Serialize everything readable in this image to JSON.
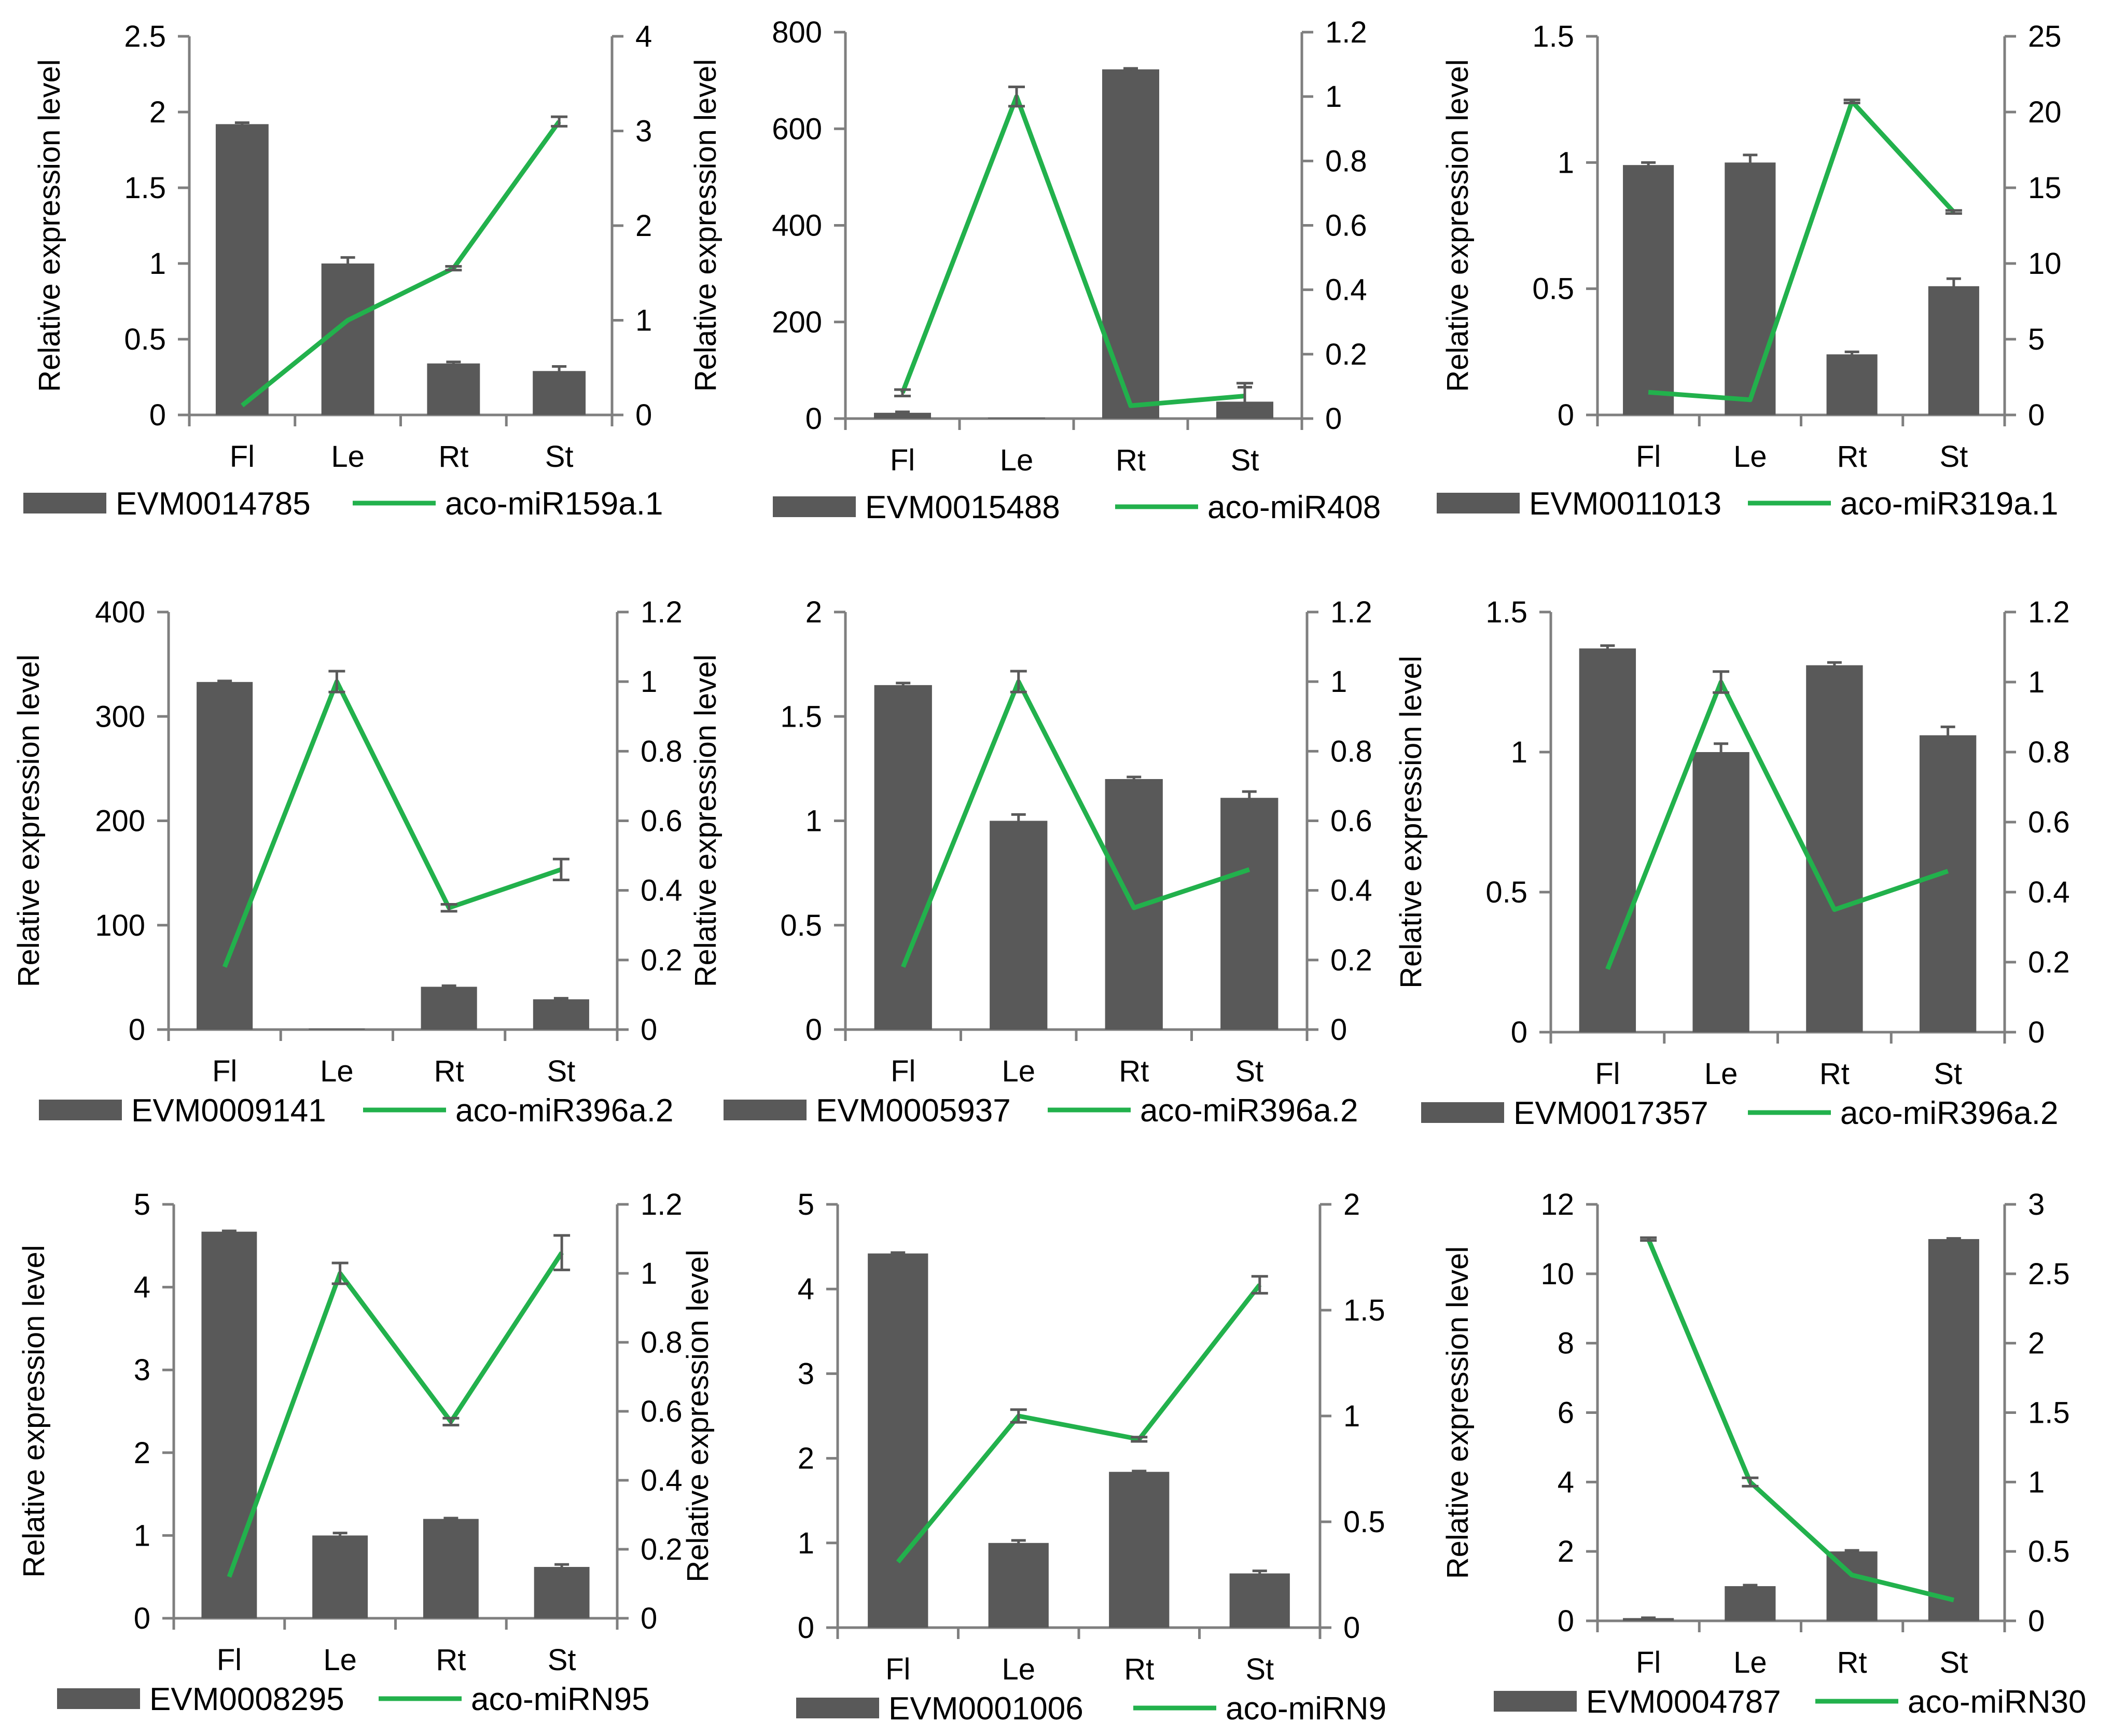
{
  "colors": {
    "bar": "#595959",
    "line": "#22b14c",
    "axis": "#7f7f7f"
  },
  "chart_data": [
    {
      "type": "bar+line",
      "categories": [
        "Fl",
        "Le",
        "Rt",
        "St"
      ],
      "ylabel": "Relative expression level",
      "bar_series": {
        "name": "EVM0014785",
        "values": [
          1.92,
          1.0,
          0.34,
          0.29
        ],
        "errors": [
          0.01,
          0.04,
          0.01,
          0.03
        ]
      },
      "line_series": {
        "name": "aco-miR159a.1",
        "values": [
          0.1,
          1.0,
          1.55,
          3.1
        ],
        "errors": [
          0,
          0,
          0.02,
          0.05
        ]
      },
      "y_left": {
        "min": 0,
        "max": 2.5,
        "ticks": [
          "0",
          "0.5",
          "1",
          "1.5",
          "2",
          "2.5"
        ]
      },
      "y_right": {
        "min": 0,
        "max": 4,
        "ticks": [
          "0",
          "1",
          "2",
          "3",
          "4"
        ]
      }
    },
    {
      "type": "bar+line",
      "categories": [
        "Fl",
        "Le",
        "Rt",
        "St"
      ],
      "ylabel": "Relative expression level",
      "bar_series": {
        "name": "EVM0015488",
        "values": [
          12,
          2,
          723,
          35
        ],
        "errors": [
          2,
          0,
          2,
          30
        ]
      },
      "line_series": {
        "name": "aco-miR408",
        "values": [
          0.08,
          1.0,
          0.04,
          0.07
        ],
        "errors": [
          0.01,
          0.03,
          0,
          0.04
        ]
      },
      "y_left": {
        "min": 0,
        "max": 800,
        "ticks": [
          "0",
          "200",
          "400",
          "600",
          "800"
        ]
      },
      "y_right": {
        "min": 0,
        "max": 1.2,
        "ticks": [
          "0",
          "0.2",
          "0.4",
          "0.6",
          "0.8",
          "1",
          "1.2"
        ]
      }
    },
    {
      "type": "bar+line",
      "categories": [
        "Fl",
        "Le",
        "Rt",
        "St"
      ],
      "ylabel": "Relative expression level",
      "bar_series": {
        "name": "EVM0011013",
        "values": [
          0.99,
          1.0,
          0.24,
          0.51
        ],
        "errors": [
          0.01,
          0.03,
          0.01,
          0.03
        ]
      },
      "line_series": {
        "name": "aco-miR319a.1",
        "values": [
          1.5,
          1.0,
          20.7,
          13.4
        ],
        "errors": [
          0,
          0,
          0.1,
          0.1
        ]
      },
      "y_left": {
        "min": 0,
        "max": 1.5,
        "ticks": [
          "0",
          "0.5",
          "1",
          "1.5"
        ]
      },
      "y_right": {
        "min": 0,
        "max": 25,
        "ticks": [
          "0",
          "5",
          "10",
          "15",
          "20",
          "25"
        ]
      }
    },
    {
      "type": "bar+line",
      "categories": [
        "Fl",
        "Le",
        "Rt",
        "St"
      ],
      "ylabel": "Relative expression level",
      "bar_series": {
        "name": "EVM0009141",
        "values": [
          333,
          1,
          41,
          29
        ],
        "errors": [
          1,
          0,
          1,
          1
        ]
      },
      "line_series": {
        "name": "aco-miR396a.2",
        "values": [
          0.18,
          1.0,
          0.35,
          0.46
        ],
        "errors": [
          0,
          0.03,
          0.01,
          0.03
        ]
      },
      "y_left": {
        "min": 0,
        "max": 400,
        "ticks": [
          "0",
          "100",
          "200",
          "300",
          "400"
        ]
      },
      "y_right": {
        "min": 0,
        "max": 1.2,
        "ticks": [
          "0",
          "0.2",
          "0.4",
          "0.6",
          "0.8",
          "1",
          "1.2"
        ]
      }
    },
    {
      "type": "bar+line",
      "categories": [
        "Fl",
        "Le",
        "Rt",
        "St"
      ],
      "ylabel": "Relative expression level",
      "bar_series": {
        "name": "EVM0005937",
        "values": [
          1.65,
          1.0,
          1.2,
          1.11
        ],
        "errors": [
          0.01,
          0.03,
          0.01,
          0.03
        ]
      },
      "line_series": {
        "name": "aco-miR396a.2",
        "values": [
          0.18,
          1.0,
          0.35,
          0.46
        ],
        "errors": [
          0,
          0.03,
          0,
          0
        ]
      },
      "y_left": {
        "min": 0,
        "max": 2,
        "ticks": [
          "0",
          "0.5",
          "1",
          "1.5",
          "2"
        ]
      },
      "y_right": {
        "min": 0,
        "max": 1.2,
        "ticks": [
          "0",
          "0.2",
          "0.4",
          "0.6",
          "0.8",
          "1",
          "1.2"
        ]
      }
    },
    {
      "type": "bar+line",
      "categories": [
        "Fl",
        "Le",
        "Rt",
        "St"
      ],
      "ylabel": "Relative expression level",
      "bar_series": {
        "name": "EVM0017357",
        "values": [
          1.37,
          1.0,
          1.31,
          1.06
        ],
        "errors": [
          0.01,
          0.03,
          0.01,
          0.03
        ]
      },
      "line_series": {
        "name": "aco-miR396a.2",
        "values": [
          0.18,
          1.0,
          0.35,
          0.46
        ],
        "errors": [
          0,
          0.03,
          0,
          0
        ]
      },
      "y_left": {
        "min": 0,
        "max": 1.5,
        "ticks": [
          "0",
          "0.5",
          "1",
          "1.5"
        ]
      },
      "y_right": {
        "min": 0,
        "max": 1.2,
        "ticks": [
          "0",
          "0.2",
          "0.4",
          "0.6",
          "0.8",
          "1",
          "1.2"
        ]
      }
    },
    {
      "type": "bar+line",
      "categories": [
        "Fl",
        "Le",
        "Rt",
        "St"
      ],
      "ylabel": "Relative expression level",
      "bar_series": {
        "name": "EVM0008295",
        "values": [
          4.67,
          1.0,
          1.2,
          0.62
        ],
        "errors": [
          0.01,
          0.03,
          0.01,
          0.03
        ]
      },
      "line_series": {
        "name": "aco-miRN95",
        "values": [
          0.12,
          1.0,
          0.57,
          1.06
        ],
        "errors": [
          0,
          0.03,
          0.01,
          0.05
        ]
      },
      "y_left": {
        "min": 0,
        "max": 5,
        "ticks": [
          "0",
          "1",
          "2",
          "3",
          "4",
          "5"
        ]
      },
      "y_right": {
        "min": 0,
        "max": 1.2,
        "ticks": [
          "0",
          "0.2",
          "0.4",
          "0.6",
          "0.8",
          "1",
          "1.2"
        ]
      }
    },
    {
      "type": "bar+line",
      "categories": [
        "Fl",
        "Le",
        "Rt",
        "St"
      ],
      "ylabel": "Relative expression level",
      "bar_series": {
        "name": "EVM0001006",
        "values": [
          4.42,
          1.0,
          1.84,
          0.64
        ],
        "errors": [
          0.01,
          0.03,
          0.01,
          0.03
        ]
      },
      "line_series": {
        "name": "aco-miRN9",
        "values": [
          0.31,
          1.0,
          0.89,
          1.62
        ],
        "errors": [
          0,
          0.03,
          0.01,
          0.04
        ]
      },
      "y_left": {
        "min": 0,
        "max": 5,
        "ticks": [
          "0",
          "1",
          "2",
          "3",
          "4",
          "5"
        ]
      },
      "y_right": {
        "min": 0,
        "max": 2,
        "ticks": [
          "0",
          "0.5",
          "1",
          "1.5",
          "2"
        ]
      }
    },
    {
      "type": "bar+line",
      "categories": [
        "Fl",
        "Le",
        "Rt",
        "St"
      ],
      "ylabel": "Relative expression level",
      "bar_series": {
        "name": "EVM0004787",
        "values": [
          0.08,
          1.0,
          2.0,
          11.0
        ],
        "errors": [
          0.01,
          0.03,
          0.03,
          0.02
        ]
      },
      "line_series": {
        "name": "aco-miRN30",
        "values": [
          2.75,
          1.0,
          0.33,
          0.15
        ],
        "errors": [
          0.01,
          0.03,
          0,
          0
        ]
      },
      "y_left": {
        "min": 0,
        "max": 12,
        "ticks": [
          "0",
          "2",
          "4",
          "6",
          "8",
          "10",
          "12"
        ]
      },
      "y_right": {
        "min": 0,
        "max": 3,
        "ticks": [
          "0",
          "0.5",
          "1",
          "1.5",
          "2",
          "2.5",
          "3"
        ]
      }
    }
  ]
}
